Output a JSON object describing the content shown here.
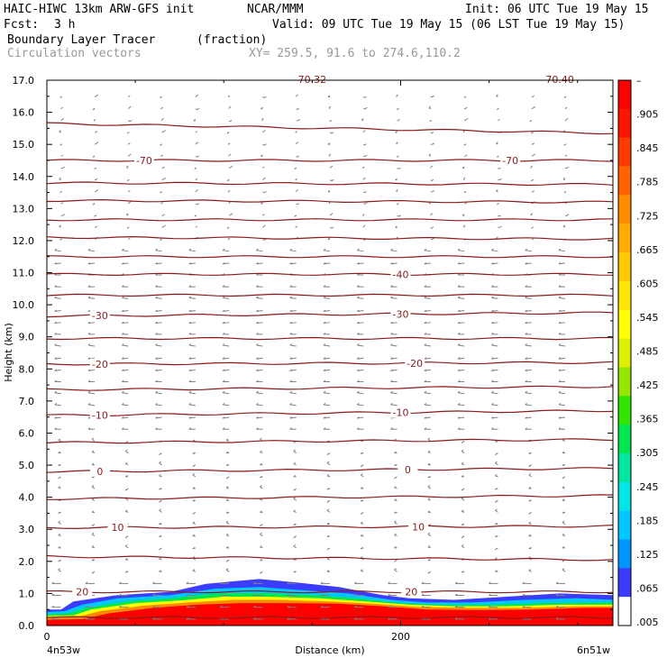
{
  "header": {
    "model": "HAIC-HIWC 13km ARW-GFS init",
    "org": "NCAR/MMM",
    "init": "Init: 06 UTC Tue 19 May 15",
    "fcst_label": "Fcst:",
    "fcst_value": "3 h",
    "valid": "Valid: 09 UTC Tue 19 May 15 (06 LST Tue 19 May 15)",
    "field_name": "Boundary Layer Tracer",
    "field_units": "(fraction)",
    "vectors_label": "Circulation vectors",
    "xy_label": "XY= 259.5, 91.6 to 274.6,110.2"
  },
  "colors": {
    "contour": "#8b1a1a",
    "vector": "#808080",
    "colorbar": [
      "#ffffff",
      "#3c3cff",
      "#0096ff",
      "#00c8ff",
      "#00e6e6",
      "#00e6a0",
      "#00e650",
      "#32e600",
      "#96e600",
      "#dcf000",
      "#ffff00",
      "#ffe600",
      "#ffc800",
      "#ffaa00",
      "#ff8c00",
      "#ff6400",
      "#ff3c00",
      "#ff1400",
      "#ff0000"
    ]
  },
  "chart_data": {
    "type": "cross-section",
    "xlabel": "Distance (km)",
    "ylabel": "Height (km)",
    "x_start_label": "4n53w",
    "x_end_label": "6n51w",
    "xlim": [
      0,
      320
    ],
    "ylim": [
      0,
      17
    ],
    "x_ticks": [
      {
        "v": 0,
        "label": "0"
      },
      {
        "v": 200,
        "label": "200"
      }
    ],
    "y_ticks": [
      {
        "v": 0,
        "label": "0.0"
      },
      {
        "v": 1,
        "label": "1.0"
      },
      {
        "v": 2,
        "label": "2.0"
      },
      {
        "v": 3,
        "label": "3.0"
      },
      {
        "v": 4,
        "label": "4.0"
      },
      {
        "v": 5,
        "label": "5.0"
      },
      {
        "v": 6,
        "label": "6.0"
      },
      {
        "v": 7,
        "label": "7.0"
      },
      {
        "v": 8,
        "label": "8.0"
      },
      {
        "v": 9,
        "label": "9.0"
      },
      {
        "v": 10,
        "label": "10.0"
      },
      {
        "v": 11,
        "label": "11.0"
      },
      {
        "v": 12,
        "label": "12.0"
      },
      {
        "v": 13,
        "label": "13.0"
      },
      {
        "v": 14,
        "label": "14.0"
      },
      {
        "v": 15,
        "label": "15.0"
      },
      {
        "v": 16,
        "label": "16.0"
      },
      {
        "v": 17,
        "label": "17.0"
      }
    ],
    "colorbar_labels": [
      "–",
      ".905",
      ".845",
      ".785",
      ".725",
      ".665",
      ".605",
      ".545",
      ".485",
      ".425",
      ".365",
      ".305",
      ".245",
      ".185",
      ".125",
      ".065",
      ".005"
    ],
    "temperature_contours": [
      {
        "y0": 0.25,
        "y1": 0.25,
        "label": ""
      },
      {
        "y0": 1.05,
        "y1": 1.05,
        "label": "20",
        "lx": [
          20,
          206
        ]
      },
      {
        "y0": 2.15,
        "y1": 2.05,
        "label": ""
      },
      {
        "y0": 3.05,
        "y1": 3.1,
        "label": "10",
        "lx": [
          40,
          210
        ]
      },
      {
        "y0": 3.95,
        "y1": 4.05,
        "label": ""
      },
      {
        "y0": 4.8,
        "y1": 4.9,
        "label": "0",
        "lx": [
          30,
          204
        ]
      },
      {
        "y0": 5.7,
        "y1": 5.8,
        "label": ""
      },
      {
        "y0": 6.55,
        "y1": 6.7,
        "label": "-10",
        "lx": [
          30,
          200
        ]
      },
      {
        "y0": 7.35,
        "y1": 7.45,
        "label": ""
      },
      {
        "y0": 8.15,
        "y1": 8.2,
        "label": "-20",
        "lx": [
          30,
          208
        ]
      },
      {
        "y0": 8.95,
        "y1": 8.95,
        "label": ""
      },
      {
        "y0": 9.65,
        "y1": 9.75,
        "label": "-30",
        "lx": [
          30,
          200
        ]
      },
      {
        "y0": 10.3,
        "y1": 10.3,
        "label": ""
      },
      {
        "y0": 10.95,
        "y1": 10.95,
        "label": "-40",
        "lx": [
          200
        ]
      },
      {
        "y0": 11.5,
        "y1": 11.5,
        "label": ""
      },
      {
        "y0": 12.1,
        "y1": 12.05,
        "label": ""
      },
      {
        "y0": 12.65,
        "y1": 12.65,
        "label": ""
      },
      {
        "y0": 13.25,
        "y1": 13.2,
        "label": ""
      },
      {
        "y0": 13.8,
        "y1": 13.75,
        "label": ""
      },
      {
        "y0": 14.5,
        "y1": 14.5,
        "label": "-70",
        "lx": [
          55,
          262
        ]
      },
      {
        "y0": 15.65,
        "y1": 15.35,
        "label": ""
      }
    ],
    "top_partial_labels": [
      "70.32",
      "70.40"
    ],
    "tracer_layers": [
      {
        "color": "#3c3cff",
        "pts": [
          [
            0,
            0.5
          ],
          [
            8,
            0.5
          ],
          [
            15,
            0.75
          ],
          [
            40,
            0.95
          ],
          [
            70,
            1.05
          ],
          [
            90,
            1.3
          ],
          [
            120,
            1.45
          ],
          [
            140,
            1.35
          ],
          [
            165,
            1.2
          ],
          [
            190,
            0.95
          ],
          [
            205,
            0.85
          ],
          [
            230,
            0.8
          ],
          [
            260,
            0.9
          ],
          [
            290,
            1.0
          ],
          [
            320,
            0.95
          ]
        ]
      },
      {
        "color": "#00c8ff",
        "pts": [
          [
            0,
            0.42
          ],
          [
            10,
            0.45
          ],
          [
            20,
            0.65
          ],
          [
            40,
            0.85
          ],
          [
            70,
            0.95
          ],
          [
            95,
            1.15
          ],
          [
            120,
            1.2
          ],
          [
            145,
            1.1
          ],
          [
            170,
            1.0
          ],
          [
            195,
            0.8
          ],
          [
            215,
            0.72
          ],
          [
            240,
            0.72
          ],
          [
            270,
            0.8
          ],
          [
            300,
            0.85
          ],
          [
            320,
            0.8
          ]
        ]
      },
      {
        "color": "#00e650",
        "pts": [
          [
            0,
            0.35
          ],
          [
            12,
            0.38
          ],
          [
            22,
            0.55
          ],
          [
            45,
            0.75
          ],
          [
            70,
            0.85
          ],
          [
            95,
            1.0
          ],
          [
            120,
            1.02
          ],
          [
            150,
            0.95
          ],
          [
            175,
            0.85
          ],
          [
            200,
            0.7
          ],
          [
            225,
            0.65
          ],
          [
            250,
            0.65
          ],
          [
            280,
            0.7
          ],
          [
            320,
            0.72
          ]
        ]
      },
      {
        "color": "#ffff00",
        "pts": [
          [
            0,
            0.3
          ],
          [
            15,
            0.32
          ],
          [
            25,
            0.5
          ],
          [
            50,
            0.7
          ],
          [
            75,
            0.78
          ],
          [
            100,
            0.9
          ],
          [
            125,
            0.9
          ],
          [
            155,
            0.85
          ],
          [
            180,
            0.75
          ],
          [
            205,
            0.65
          ],
          [
            230,
            0.6
          ],
          [
            260,
            0.6
          ],
          [
            290,
            0.65
          ],
          [
            320,
            0.65
          ]
        ]
      },
      {
        "color": "#ff8c00",
        "pts": [
          [
            0,
            0.25
          ],
          [
            18,
            0.28
          ],
          [
            30,
            0.45
          ],
          [
            55,
            0.62
          ],
          [
            80,
            0.72
          ],
          [
            105,
            0.8
          ],
          [
            130,
            0.8
          ],
          [
            160,
            0.75
          ],
          [
            185,
            0.68
          ],
          [
            210,
            0.58
          ],
          [
            240,
            0.55
          ],
          [
            270,
            0.55
          ],
          [
            300,
            0.6
          ],
          [
            320,
            0.6
          ]
        ]
      },
      {
        "color": "#ff0000",
        "pts": [
          [
            0,
            0.18
          ],
          [
            20,
            0.2
          ],
          [
            35,
            0.38
          ],
          [
            60,
            0.55
          ],
          [
            85,
            0.65
          ],
          [
            110,
            0.7
          ],
          [
            135,
            0.7
          ],
          [
            165,
            0.68
          ],
          [
            190,
            0.6
          ],
          [
            215,
            0.5
          ],
          [
            245,
            0.48
          ],
          [
            275,
            0.5
          ],
          [
            305,
            0.55
          ],
          [
            320,
            0.55
          ]
        ]
      }
    ]
  }
}
